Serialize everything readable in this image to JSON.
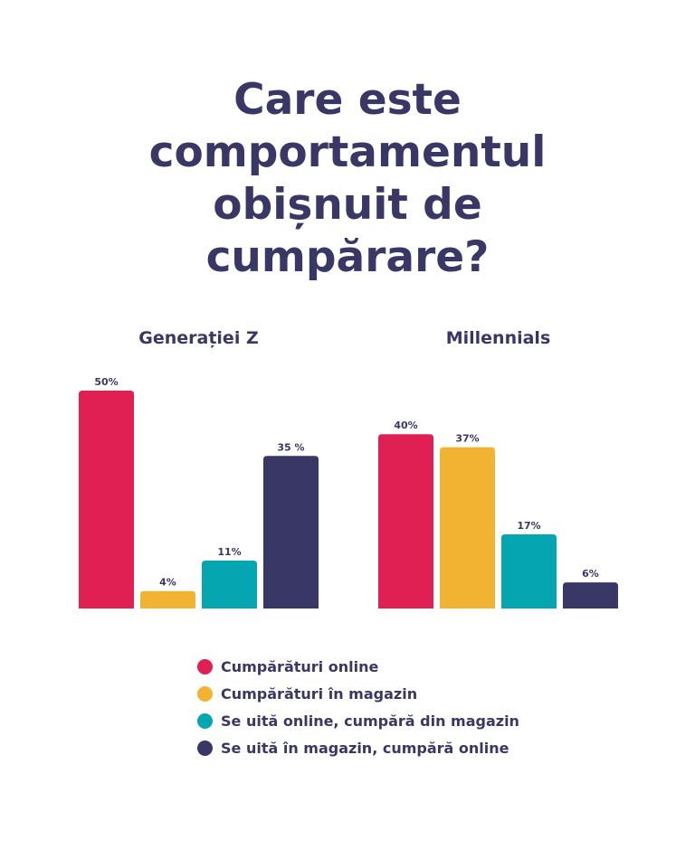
{
  "title_lines": [
    "Care este",
    "comportamentul",
    "obișnuit de",
    "cumpărare?"
  ],
  "colors": {
    "text": "#383766",
    "series": [
      "#E01F53",
      "#F2B232",
      "#05A5B2",
      "#383766"
    ]
  },
  "chart_data": {
    "type": "bar",
    "title": "Care este comportamentul obișnuit de cumpărare?",
    "ylabel": "",
    "xlabel": "",
    "unit": "%",
    "ylim": [
      0,
      50
    ],
    "grid": false,
    "legend_position": "bottom",
    "series_names": [
      "Cumpărături online",
      "Cumpărături în magazin",
      "Se uită online, cumpără din magazin",
      "Se uită în magazin, cumpără online"
    ],
    "groups": [
      {
        "name": "Generației Z",
        "values": [
          50,
          4,
          11,
          35
        ],
        "labels": [
          "50%",
          "4%",
          "11%",
          "35 %"
        ]
      },
      {
        "name": "Millennials",
        "values": [
          40,
          37,
          17,
          6
        ],
        "labels": [
          "40%",
          "37%",
          "17%",
          "6%"
        ]
      }
    ]
  }
}
